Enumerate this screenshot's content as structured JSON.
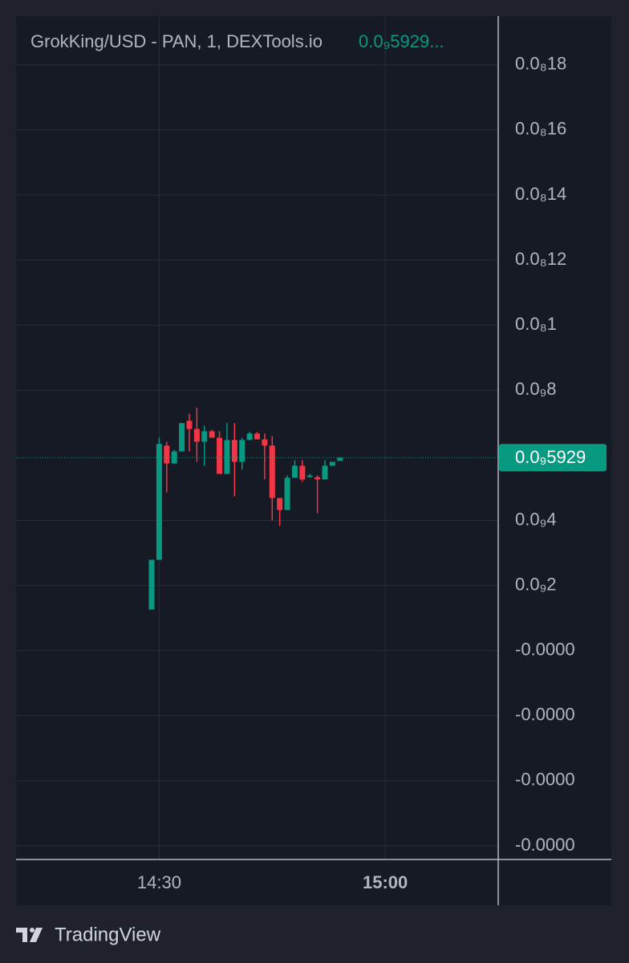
{
  "chart_data": {
    "type": "candlestick",
    "title": "GrokKing/USD - PAN, 1, DEXTools.io",
    "legend_value": "0.0₉5929...",
    "footer": "TradingView",
    "categories": [
      null,
      null,
      null,
      null,
      null,
      null,
      null,
      null,
      null,
      null,
      null,
      null,
      null,
      null,
      null,
      null,
      null,
      null,
      null,
      null,
      null,
      null,
      null,
      null,
      null,
      null
    ],
    "open": [
      1.26e-10,
      2.79e-10,
      6.3e-10,
      5.75e-10,
      6.12e-10,
      7.06e-10,
      6.81e-10,
      6.42e-10,
      6.74e-10,
      6.54e-10,
      5.43e-10,
      6.47e-10,
      5.8e-10,
      6.47e-10,
      6.67e-10,
      6.49e-10,
      6.3e-10,
      4.69e-10,
      4.32e-10,
      5.31e-10,
      5.68e-10,
      5.33e-10,
      5.33e-10,
      5.26e-10,
      5.68e-10,
      5.83e-10
    ],
    "high": [
      2.79e-10,
      6.54e-10,
      6.42e-10,
      6.17e-10,
      6.99e-10,
      7.28e-10,
      7.46e-10,
      6.91e-10,
      6.79e-10,
      6.74e-10,
      6.99e-10,
      6.99e-10,
      6.54e-10,
      6.72e-10,
      6.72e-10,
      6.67e-10,
      6.59e-10,
      4.69e-10,
      5.38e-10,
      5.85e-10,
      5.85e-10,
      5.43e-10,
      5.38e-10,
      5.85e-10,
      5.8e-10,
      5.929e-10
    ],
    "low": [
      1.26e-10,
      2.79e-10,
      4.86e-10,
      5.73e-10,
      6.12e-10,
      6.12e-10,
      5.8e-10,
      5.68e-10,
      6.54e-10,
      5.43e-10,
      5.43e-10,
      4.74e-10,
      5.56e-10,
      6.47e-10,
      6.49e-10,
      5.26e-10,
      4e-10,
      3.83e-10,
      4.32e-10,
      5.31e-10,
      5.19e-10,
      5.33e-10,
      4.22e-10,
      5.26e-10,
      5.68e-10,
      5.83e-10
    ],
    "close": [
      2.79e-10,
      6.35e-10,
      5.75e-10,
      6.12e-10,
      6.99e-10,
      6.81e-10,
      6.42e-10,
      6.74e-10,
      6.54e-10,
      5.43e-10,
      6.47e-10,
      5.8e-10,
      6.47e-10,
      6.67e-10,
      6.49e-10,
      6.3e-10,
      4.69e-10,
      4.32e-10,
      5.31e-10,
      5.68e-10,
      5.26e-10,
      5.38e-10,
      5.26e-10,
      5.68e-10,
      5.8e-10,
      5.929e-10
    ],
    "up_color": "#089981",
    "down_color": "#f23645",
    "last_price": 5.929e-10,
    "last_price_label": "0.0₉5929",
    "xlim": [
      -18,
      46
    ],
    "xticks": [
      {
        "value": 1,
        "label": "14:30"
      },
      {
        "value": 31,
        "label": "15:00"
      }
    ],
    "ylim": [
      -6.42e-10,
      1.95e-09
    ],
    "yticks": [
      {
        "value": 1.8e-09,
        "label": "0.0₈18"
      },
      {
        "value": 1.6e-09,
        "label": "0.0₈16"
      },
      {
        "value": 1.4e-09,
        "label": "0.0₈14"
      },
      {
        "value": 1.2e-09,
        "label": "0.0₈12"
      },
      {
        "value": 1e-09,
        "label": "0.0₈1"
      },
      {
        "value": 8e-10,
        "label": "0.0₉8"
      },
      {
        "value": 4e-10,
        "label": "0.0₉4"
      },
      {
        "value": 2e-10,
        "label": "0.0₉2"
      },
      {
        "value": 0,
        "label": "-0.0000"
      },
      {
        "value": -2e-10,
        "label": "-0.0000"
      },
      {
        "value": -4e-10,
        "label": "-0.0000"
      },
      {
        "value": -6e-10,
        "label": "-0.0000"
      }
    ],
    "grid": true
  }
}
